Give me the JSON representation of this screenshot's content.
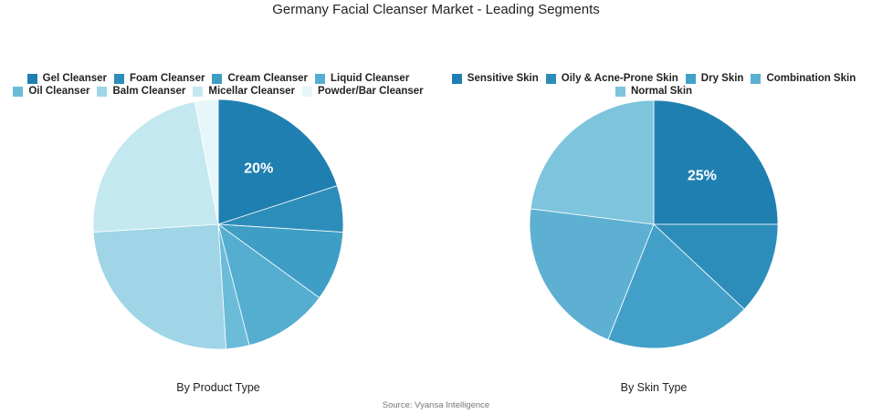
{
  "title": "Germany Facial Cleanser Market - Leading Segments",
  "source": "Source: Vyansa Intelligence",
  "chart_data": [
    {
      "type": "pie",
      "subtitle": "By Product Type",
      "categories": [
        "Gel Cleanser",
        "Foam Cleanser",
        "Cream Cleanser",
        "Liquid Cleanser",
        "Oil Cleanser",
        "Balm Cleanser",
        "Micellar Cleanser",
        "Powder/Bar Cleanser"
      ],
      "values": [
        20,
        6,
        9,
        11,
        3,
        25,
        23,
        3
      ],
      "value_labels": [
        "20%",
        null,
        null,
        null,
        null,
        null,
        null,
        null
      ],
      "colors": [
        "#1f7fb0",
        "#2d8dba",
        "#3f9ec6",
        "#55aed0",
        "#6bbcd8",
        "#9fd5e6",
        "#c4e8f0",
        "#e6f6f9"
      ]
    },
    {
      "type": "pie",
      "subtitle": "By Skin Type",
      "categories": [
        "Sensitive Skin",
        "Oily & Acne-Prone Skin",
        "Dry Skin",
        "Combination Skin",
        "Normal Skin"
      ],
      "values": [
        25,
        12,
        19,
        21,
        23
      ],
      "value_labels": [
        "25%",
        null,
        null,
        null,
        null
      ],
      "colors": [
        "#1f7fb0",
        "#2d8dba",
        "#42a0c8",
        "#5db0d2",
        "#7ec4dd"
      ]
    }
  ]
}
